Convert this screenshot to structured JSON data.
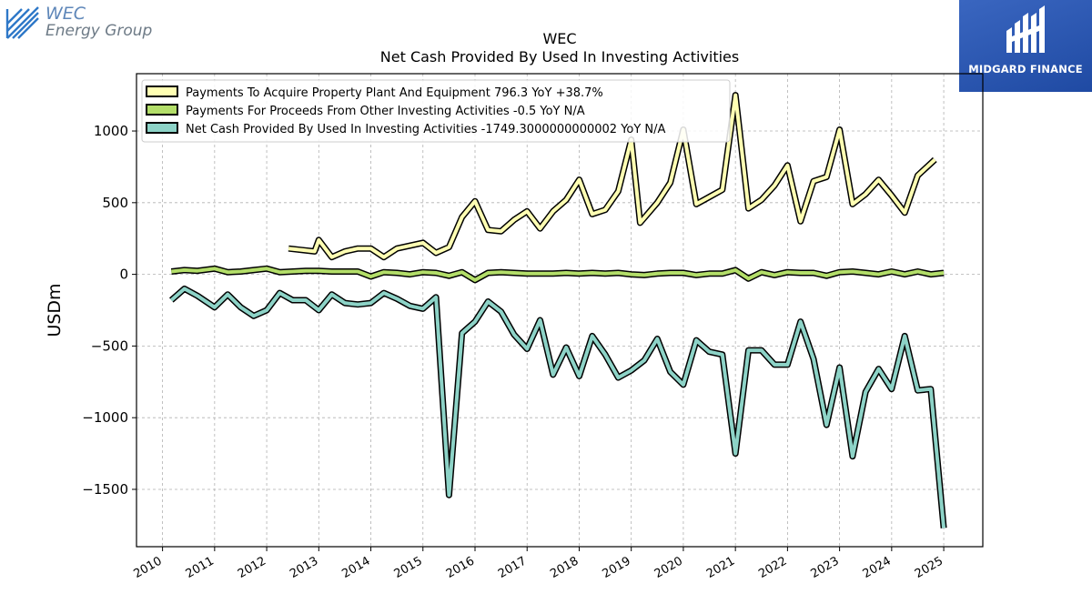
{
  "branding": {
    "company_name_line1": "WEC",
    "company_name_line2": "Energy Group",
    "badge_text": "MIDGARD FINANCE"
  },
  "chart_data": {
    "type": "line",
    "title_line1": "WEC",
    "title_line2": "Net Cash Provided By Used In Investing Activities",
    "ylabel": "USDm",
    "xlabel": "",
    "xlim": [
      2009.5,
      2025.75
    ],
    "ylim": [
      -1900,
      1400
    ],
    "x_ticks": [
      2010,
      2011,
      2012,
      2013,
      2014,
      2015,
      2016,
      2017,
      2018,
      2019,
      2020,
      2021,
      2022,
      2023,
      2024,
      2025
    ],
    "y_ticks": [
      -1500,
      -1000,
      -500,
      0,
      500,
      1000
    ],
    "y_tick_labels": [
      "−1500",
      "−1000",
      "−500",
      "0",
      "500",
      "1000"
    ],
    "grid": true,
    "legend_position": "top-left",
    "series": [
      {
        "name": "Payments To Acquire Property Plant And Equipment  796.3 YoY +38.7%",
        "color": "#ffffb3",
        "points": [
          [
            2012.42,
            180
          ],
          [
            2012.67,
            170
          ],
          [
            2012.92,
            160
          ],
          [
            2013.0,
            240
          ],
          [
            2013.25,
            120
          ],
          [
            2013.5,
            160
          ],
          [
            2013.75,
            180
          ],
          [
            2014.0,
            180
          ],
          [
            2014.25,
            120
          ],
          [
            2014.5,
            180
          ],
          [
            2014.75,
            200
          ],
          [
            2015.0,
            220
          ],
          [
            2015.25,
            150
          ],
          [
            2015.5,
            190
          ],
          [
            2015.75,
            400
          ],
          [
            2016.0,
            510
          ],
          [
            2016.25,
            310
          ],
          [
            2016.5,
            300
          ],
          [
            2016.75,
            380
          ],
          [
            2017.0,
            440
          ],
          [
            2017.25,
            320
          ],
          [
            2017.5,
            440
          ],
          [
            2017.75,
            520
          ],
          [
            2018.0,
            660
          ],
          [
            2018.25,
            420
          ],
          [
            2018.5,
            450
          ],
          [
            2018.75,
            580
          ],
          [
            2019.0,
            940
          ],
          [
            2019.17,
            360
          ],
          [
            2019.5,
            500
          ],
          [
            2019.75,
            640
          ],
          [
            2020.0,
            1010
          ],
          [
            2020.25,
            490
          ],
          [
            2020.5,
            540
          ],
          [
            2020.75,
            590
          ],
          [
            2021.0,
            1250
          ],
          [
            2021.25,
            460
          ],
          [
            2021.5,
            520
          ],
          [
            2021.75,
            620
          ],
          [
            2022.0,
            760
          ],
          [
            2022.25,
            370
          ],
          [
            2022.5,
            650
          ],
          [
            2022.75,
            680
          ],
          [
            2023.0,
            1010
          ],
          [
            2023.25,
            490
          ],
          [
            2023.5,
            560
          ],
          [
            2023.75,
            660
          ],
          [
            2024.0,
            550
          ],
          [
            2024.25,
            430
          ],
          [
            2024.5,
            690
          ],
          [
            2024.83,
            800
          ]
        ]
      },
      {
        "name": "Payments For Proceeds From Other Investing Activities  -0.5 YoY N/A",
        "color": "#b3de69",
        "points": [
          [
            2010.17,
            20
          ],
          [
            2010.42,
            30
          ],
          [
            2010.67,
            25
          ],
          [
            2011.0,
            40
          ],
          [
            2011.25,
            15
          ],
          [
            2011.5,
            20
          ],
          [
            2011.75,
            30
          ],
          [
            2012.0,
            40
          ],
          [
            2012.25,
            15
          ],
          [
            2012.5,
            20
          ],
          [
            2012.75,
            25
          ],
          [
            2013.0,
            25
          ],
          [
            2013.25,
            20
          ],
          [
            2013.5,
            20
          ],
          [
            2013.75,
            20
          ],
          [
            2014.0,
            -15
          ],
          [
            2014.25,
            15
          ],
          [
            2014.5,
            10
          ],
          [
            2014.75,
            0
          ],
          [
            2015.0,
            15
          ],
          [
            2015.25,
            10
          ],
          [
            2015.5,
            -10
          ],
          [
            2015.75,
            15
          ],
          [
            2016.0,
            -40
          ],
          [
            2016.25,
            10
          ],
          [
            2016.5,
            15
          ],
          [
            2016.75,
            10
          ],
          [
            2017.0,
            5
          ],
          [
            2017.5,
            5
          ],
          [
            2017.75,
            10
          ],
          [
            2018.0,
            5
          ],
          [
            2018.25,
            10
          ],
          [
            2018.5,
            5
          ],
          [
            2018.75,
            10
          ],
          [
            2019.0,
            0
          ],
          [
            2019.25,
            -5
          ],
          [
            2019.5,
            5
          ],
          [
            2019.75,
            10
          ],
          [
            2020.0,
            10
          ],
          [
            2020.25,
            -5
          ],
          [
            2020.5,
            5
          ],
          [
            2020.75,
            5
          ],
          [
            2021.0,
            30
          ],
          [
            2021.25,
            -30
          ],
          [
            2021.5,
            15
          ],
          [
            2021.75,
            -5
          ],
          [
            2022.0,
            15
          ],
          [
            2022.25,
            10
          ],
          [
            2022.5,
            10
          ],
          [
            2022.75,
            -10
          ],
          [
            2023.0,
            15
          ],
          [
            2023.25,
            20
          ],
          [
            2023.5,
            10
          ],
          [
            2023.75,
            0
          ],
          [
            2024.0,
            20
          ],
          [
            2024.25,
            0
          ],
          [
            2024.5,
            20
          ],
          [
            2024.75,
            0
          ],
          [
            2025.0,
            10
          ]
        ]
      },
      {
        "name": "Net Cash Provided By Used In Investing Activities  -1749.3000000000002 YoY N/A",
        "color": "#8dd3c7",
        "points": [
          [
            2010.17,
            -180
          ],
          [
            2010.42,
            -100
          ],
          [
            2010.67,
            -150
          ],
          [
            2011.0,
            -230
          ],
          [
            2011.25,
            -140
          ],
          [
            2011.5,
            -230
          ],
          [
            2011.75,
            -290
          ],
          [
            2012.0,
            -250
          ],
          [
            2012.25,
            -130
          ],
          [
            2012.5,
            -180
          ],
          [
            2012.75,
            -180
          ],
          [
            2013.0,
            -250
          ],
          [
            2013.25,
            -140
          ],
          [
            2013.5,
            -200
          ],
          [
            2013.75,
            -210
          ],
          [
            2014.0,
            -200
          ],
          [
            2014.25,
            -130
          ],
          [
            2014.5,
            -170
          ],
          [
            2014.75,
            -220
          ],
          [
            2015.0,
            -240
          ],
          [
            2015.25,
            -160
          ],
          [
            2015.5,
            -1540
          ],
          [
            2015.75,
            -410
          ],
          [
            2016.0,
            -330
          ],
          [
            2016.25,
            -190
          ],
          [
            2016.5,
            -260
          ],
          [
            2016.75,
            -420
          ],
          [
            2017.0,
            -520
          ],
          [
            2017.25,
            -320
          ],
          [
            2017.5,
            -700
          ],
          [
            2017.75,
            -510
          ],
          [
            2018.0,
            -710
          ],
          [
            2018.25,
            -430
          ],
          [
            2018.5,
            -560
          ],
          [
            2018.75,
            -720
          ],
          [
            2019.0,
            -670
          ],
          [
            2019.25,
            -600
          ],
          [
            2019.5,
            -450
          ],
          [
            2019.75,
            -680
          ],
          [
            2020.0,
            -770
          ],
          [
            2020.25,
            -460
          ],
          [
            2020.5,
            -540
          ],
          [
            2020.75,
            -560
          ],
          [
            2021.0,
            -1250
          ],
          [
            2021.25,
            -530
          ],
          [
            2021.5,
            -530
          ],
          [
            2021.75,
            -630
          ],
          [
            2022.0,
            -630
          ],
          [
            2022.25,
            -330
          ],
          [
            2022.5,
            -590
          ],
          [
            2022.75,
            -1050
          ],
          [
            2023.0,
            -650
          ],
          [
            2023.25,
            -1270
          ],
          [
            2023.5,
            -820
          ],
          [
            2023.75,
            -660
          ],
          [
            2024.0,
            -800
          ],
          [
            2024.25,
            -430
          ],
          [
            2024.5,
            -810
          ],
          [
            2024.75,
            -800
          ],
          [
            2025.0,
            -1770
          ]
        ]
      }
    ]
  }
}
